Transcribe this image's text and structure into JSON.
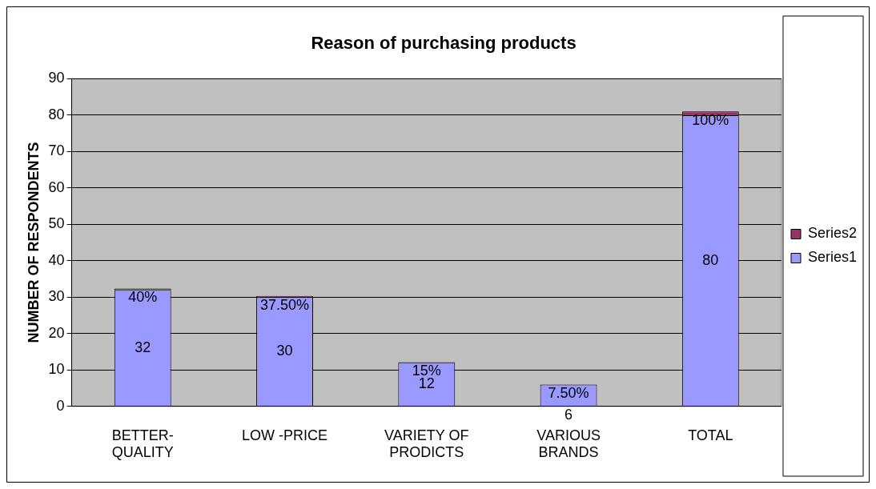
{
  "chart_data": {
    "type": "bar",
    "title": "Reason of purchasing products",
    "ylabel": "NUMBER OF RESPONDENTS",
    "categories": [
      "BETTER-QUALITY",
      "LOW -PRICE",
      "VARIETY OF PRODICTS",
      "VARIOUS BRANDS",
      "TOTAL"
    ],
    "stacked": true,
    "series": [
      {
        "name": "Series1",
        "color": "#9999ff",
        "values": [
          32,
          30,
          12,
          6,
          80
        ],
        "value_labels": [
          "32",
          "30",
          "12",
          "6",
          "80"
        ]
      },
      {
        "name": "Series2",
        "color": "#993366",
        "values": [
          0.4,
          0.375,
          0.15,
          0.075,
          1
        ],
        "value_labels": [
          "40%",
          "37.50%",
          "15%",
          "7.50%",
          "100%"
        ]
      }
    ],
    "ylim": [
      0,
      90
    ],
    "yticks": [
      0,
      10,
      20,
      30,
      40,
      50,
      60,
      70,
      80,
      90
    ],
    "grid": "y",
    "legend": "right"
  }
}
